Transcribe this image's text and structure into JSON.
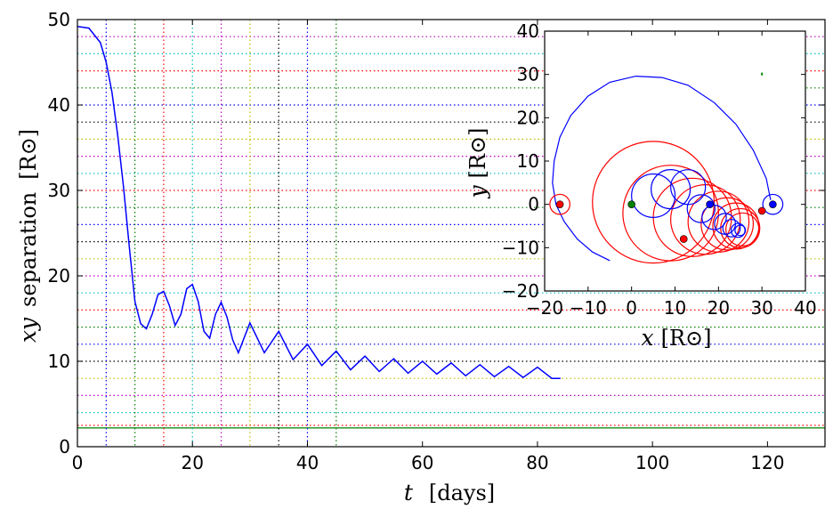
{
  "chart_data": [
    {
      "type": "line",
      "xlabel_var": "t",
      "xlabel_unit": "[days]",
      "ylabel_var": "xy",
      "ylabel_word": "separation",
      "ylabel_unit": "[R⊙]",
      "xlim": [
        0,
        130
      ],
      "ylim": [
        0,
        50
      ],
      "xticks": [
        "0",
        "20",
        "40",
        "60",
        "80",
        "100",
        "120"
      ],
      "yticks": [
        "0",
        "10",
        "20",
        "30",
        "40",
        "50"
      ],
      "x_tick_values": [
        0,
        20,
        40,
        60,
        80,
        100,
        120
      ],
      "y_tick_values": [
        0,
        10,
        20,
        30,
        40,
        50
      ],
      "grid": false,
      "series": [
        {
          "color": "#0000ff",
          "x": [
            0,
            2,
            4,
            5,
            6,
            7,
            8,
            9,
            10,
            11,
            12,
            13,
            14,
            15,
            16,
            17,
            18,
            19,
            20,
            21,
            22,
            23,
            24,
            25,
            26,
            27,
            28,
            30,
            32.5,
            35,
            37.5,
            40,
            42.5,
            45,
            47.5,
            50,
            52.5,
            55,
            57.5,
            60,
            62.5,
            65,
            67.5,
            70,
            72.5,
            75,
            77.5,
            80,
            82.5,
            84
          ],
          "y": [
            49.2,
            49.0,
            47.3,
            45.0,
            41.5,
            36.5,
            30.5,
            23.5,
            17.0,
            14.4,
            13.8,
            15.5,
            17.8,
            18.2,
            16.5,
            14.2,
            15.5,
            18.5,
            19.0,
            17.0,
            13.5,
            12.7,
            15.5,
            16.9,
            15.2,
            12.5,
            11.0,
            14.5,
            11.0,
            13.5,
            10.2,
            12.0,
            9.5,
            11.2,
            9.0,
            10.6,
            8.8,
            10.3,
            8.6,
            10.0,
            8.5,
            9.8,
            8.3,
            9.6,
            8.2,
            9.4,
            8.1,
            9.3,
            8.0,
            8.0
          ]
        }
      ],
      "hlines": [
        {
          "y": 2.2,
          "color": "#008000",
          "style": "solid"
        },
        {
          "y": 2.5,
          "color": "#ff0000",
          "style": "dotted"
        },
        {
          "y": 4.0,
          "color": "#00bfbf",
          "style": "dotted"
        },
        {
          "y": 6.0,
          "color": "#bf00bf",
          "style": "dotted"
        },
        {
          "y": 8.0,
          "color": "#bfbf00",
          "style": "dotted"
        },
        {
          "y": 10.0,
          "color": "#000000",
          "style": "dotted"
        },
        {
          "y": 12.0,
          "color": "#0000ff",
          "style": "dotted"
        },
        {
          "y": 14.0,
          "color": "#008000",
          "style": "dotted"
        },
        {
          "y": 16.0,
          "color": "#ff0000",
          "style": "dotted"
        },
        {
          "y": 18.0,
          "color": "#00bfbf",
          "style": "dotted"
        },
        {
          "y": 20.0,
          "color": "#bf00bf",
          "style": "dotted"
        },
        {
          "y": 22.0,
          "color": "#bfbf00",
          "style": "dotted"
        },
        {
          "y": 24.0,
          "color": "#000000",
          "style": "dotted"
        },
        {
          "y": 26.0,
          "color": "#0000ff",
          "style": "dotted"
        },
        {
          "y": 28.0,
          "color": "#008000",
          "style": "dotted"
        },
        {
          "y": 30.0,
          "color": "#ff0000",
          "style": "dotted"
        },
        {
          "y": 32.0,
          "color": "#00bfbf",
          "style": "dotted"
        },
        {
          "y": 34.0,
          "color": "#bf00bf",
          "style": "dotted"
        },
        {
          "y": 36.0,
          "color": "#bfbf00",
          "style": "dotted"
        },
        {
          "y": 38.0,
          "color": "#000000",
          "style": "dotted"
        },
        {
          "y": 40.0,
          "color": "#0000ff",
          "style": "dotted"
        },
        {
          "y": 42.0,
          "color": "#008000",
          "style": "dotted"
        },
        {
          "y": 44.0,
          "color": "#ff0000",
          "style": "dotted"
        },
        {
          "y": 46.0,
          "color": "#00bfbf",
          "style": "dotted"
        },
        {
          "y": 48.0,
          "color": "#bf00bf",
          "style": "dotted"
        }
      ],
      "vlines": [
        {
          "x": 5,
          "color": "#0000ff"
        },
        {
          "x": 10,
          "color": "#008000"
        },
        {
          "x": 15,
          "color": "#ff0000"
        },
        {
          "x": 20,
          "color": "#00bfbf"
        },
        {
          "x": 25,
          "color": "#bf00bf"
        },
        {
          "x": 30,
          "color": "#bfbf00"
        },
        {
          "x": 35,
          "color": "#000000"
        },
        {
          "x": 40,
          "color": "#0000ff"
        },
        {
          "x": 45,
          "color": "#008000"
        }
      ]
    },
    {
      "type": "line",
      "xlabel_var": "x",
      "ylabel_var": "y",
      "unit": "[R⊙]",
      "xlim": [
        -20,
        40
      ],
      "ylim": [
        -20,
        40
      ],
      "xticks": [
        "−20",
        "−10",
        "0",
        "10",
        "20",
        "30",
        "40"
      ],
      "yticks": [
        "−20",
        "−10",
        "0",
        "10",
        "20",
        "30",
        "40"
      ],
      "tick_values": [
        -20,
        -10,
        0,
        10,
        20,
        30,
        40
      ],
      "grid": false,
      "blue_arc": {
        "color": "#0000ff",
        "x": [
          32,
          31,
          28,
          24,
          19,
          13,
          7,
          1,
          -5,
          -10,
          -14,
          -16.5,
          -17.8,
          -18.2,
          -17.4,
          -15.5,
          -12.5,
          -9,
          -5
        ],
        "y": [
          1,
          6,
          12.5,
          18.5,
          23.5,
          27.5,
          29.3,
          29.6,
          28.2,
          25,
          20.5,
          15.5,
          10,
          5,
          0,
          -4,
          -8,
          -11,
          -13
        ]
      },
      "loops": [
        {
          "color": "#ff0000",
          "cx": -16.5,
          "cy": 0,
          "r": 2.3
        },
        {
          "color": "#0000ff",
          "cx": 32.5,
          "cy": 0,
          "r": 2.3
        },
        {
          "color": "#ff0000",
          "cx": 5,
          "cy": 0.5,
          "r": 14
        },
        {
          "color": "#ff0000",
          "cx": 9,
          "cy": -2,
          "r": 11
        },
        {
          "color": "#ff0000",
          "cx": 14,
          "cy": -3,
          "r": 9
        },
        {
          "color": "#ff0000",
          "cx": 17,
          "cy": -3.5,
          "r": 8
        },
        {
          "color": "#ff0000",
          "cx": 20,
          "cy": -4,
          "r": 7
        },
        {
          "color": "#ff0000",
          "cx": 22,
          "cy": -4.5,
          "r": 6
        },
        {
          "color": "#ff0000",
          "cx": 24,
          "cy": -5,
          "r": 5.3
        },
        {
          "color": "#ff0000",
          "cx": 25,
          "cy": -5.5,
          "r": 4.5
        },
        {
          "color": "#ff0000",
          "cx": 25.5,
          "cy": -5.8,
          "r": 3.8
        },
        {
          "color": "#0000ff",
          "cx": 5,
          "cy": 2,
          "r": 5
        },
        {
          "color": "#0000ff",
          "cx": 9,
          "cy": 3.5,
          "r": 4.5
        },
        {
          "color": "#0000ff",
          "cx": 13,
          "cy": 4,
          "r": 4
        },
        {
          "color": "#0000ff",
          "cx": 16,
          "cy": -1,
          "r": 3.2
        },
        {
          "color": "#0000ff",
          "cx": 19,
          "cy": -3,
          "r": 2.8
        },
        {
          "color": "#0000ff",
          "cx": 21.5,
          "cy": -4.5,
          "r": 2.4
        },
        {
          "color": "#0000ff",
          "cx": 23,
          "cy": -5.5,
          "r": 2.0
        },
        {
          "color": "#0000ff",
          "cx": 24.5,
          "cy": -6,
          "r": 1.6
        },
        {
          "color": "#0000ff",
          "cx": 25,
          "cy": -6,
          "r": 1.2
        }
      ],
      "points": [
        {
          "x": -16.5,
          "y": 0,
          "color": "#ff0000"
        },
        {
          "x": 32.5,
          "y": 0,
          "color": "#0000ff"
        },
        {
          "x": 0,
          "y": 0,
          "color": "#008000"
        },
        {
          "x": 18,
          "y": 0,
          "color": "#0000ff"
        },
        {
          "x": 30,
          "y": -1.5,
          "color": "#ff0000"
        },
        {
          "x": 12,
          "y": -8,
          "color": "#ff0000"
        }
      ],
      "marker": {
        "x": 30,
        "y": 30,
        "color": "#008000"
      }
    }
  ]
}
